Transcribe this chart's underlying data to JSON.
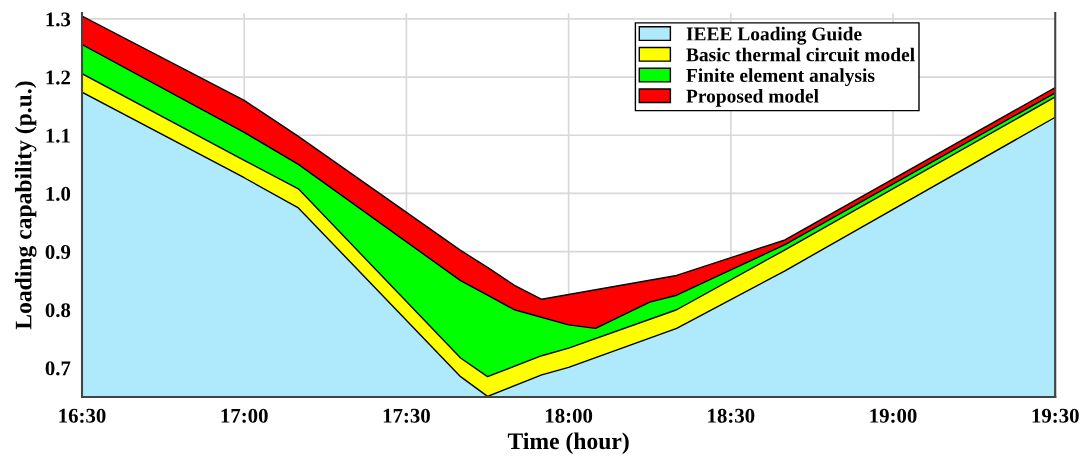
{
  "chart_data": {
    "type": "area",
    "xlabel": "Time (hour)",
    "ylabel": "Loading capability (p.u.)",
    "xlim": [
      16.5,
      19.5
    ],
    "xticks": [
      {
        "value": 16.5,
        "label": "16:30"
      },
      {
        "value": 17.0,
        "label": "17:00"
      },
      {
        "value": 17.5,
        "label": "17:30"
      },
      {
        "value": 18.0,
        "label": "18:00"
      },
      {
        "value": 18.5,
        "label": "18:30"
      },
      {
        "value": 19.0,
        "label": "19:00"
      },
      {
        "value": 19.5,
        "label": "19:30"
      }
    ],
    "ylim": [
      0.65,
      1.31
    ],
    "yticks": [
      {
        "value": 0.7,
        "label": "0.7"
      },
      {
        "value": 0.8,
        "label": "0.8"
      },
      {
        "value": 0.9,
        "label": "0.9"
      },
      {
        "value": 1.0,
        "label": "1.0"
      },
      {
        "value": 1.1,
        "label": "1.1"
      },
      {
        "value": 1.2,
        "label": "1.2"
      },
      {
        "value": 1.3,
        "label": "1.3"
      }
    ],
    "grid": true,
    "legend": "top right",
    "series": [
      {
        "name": "IEEE Loading Guide",
        "color": "#aeeafb",
        "x": [
          16.5,
          17.0,
          17.167,
          17.667,
          17.75,
          17.917,
          18.0,
          18.333,
          18.667,
          19.5
        ],
        "values": [
          1.174,
          1.027,
          0.975,
          0.685,
          0.651,
          0.688,
          0.701,
          0.768,
          0.867,
          1.131
        ]
      },
      {
        "name": "Basic thermal circuit model",
        "color": "#ffff00",
        "x": [
          16.5,
          17.0,
          17.167,
          17.667,
          17.75,
          17.917,
          18.0,
          18.333,
          18.667,
          19.5
        ],
        "values": [
          1.206,
          1.057,
          1.008,
          0.717,
          0.685,
          0.721,
          0.734,
          0.8,
          0.903,
          1.166
        ]
      },
      {
        "name": "Finite element analysis",
        "color": "#00ff00",
        "x": [
          16.5,
          17.0,
          17.167,
          17.667,
          17.75,
          17.833,
          18.0,
          18.083,
          18.25,
          18.333,
          18.667,
          19.5
        ],
        "values": [
          1.256,
          1.105,
          1.05,
          0.85,
          0.825,
          0.8,
          0.774,
          0.768,
          0.813,
          0.825,
          0.912,
          1.173
        ]
      },
      {
        "name": "Proposed model",
        "color": "#ff0000",
        "x": [
          16.5,
          17.0,
          17.167,
          17.667,
          17.75,
          17.833,
          17.917,
          18.333,
          18.667,
          19.5
        ],
        "values": [
          1.305,
          1.16,
          1.098,
          0.902,
          0.873,
          0.842,
          0.818,
          0.859,
          0.92,
          1.182
        ]
      }
    ]
  }
}
